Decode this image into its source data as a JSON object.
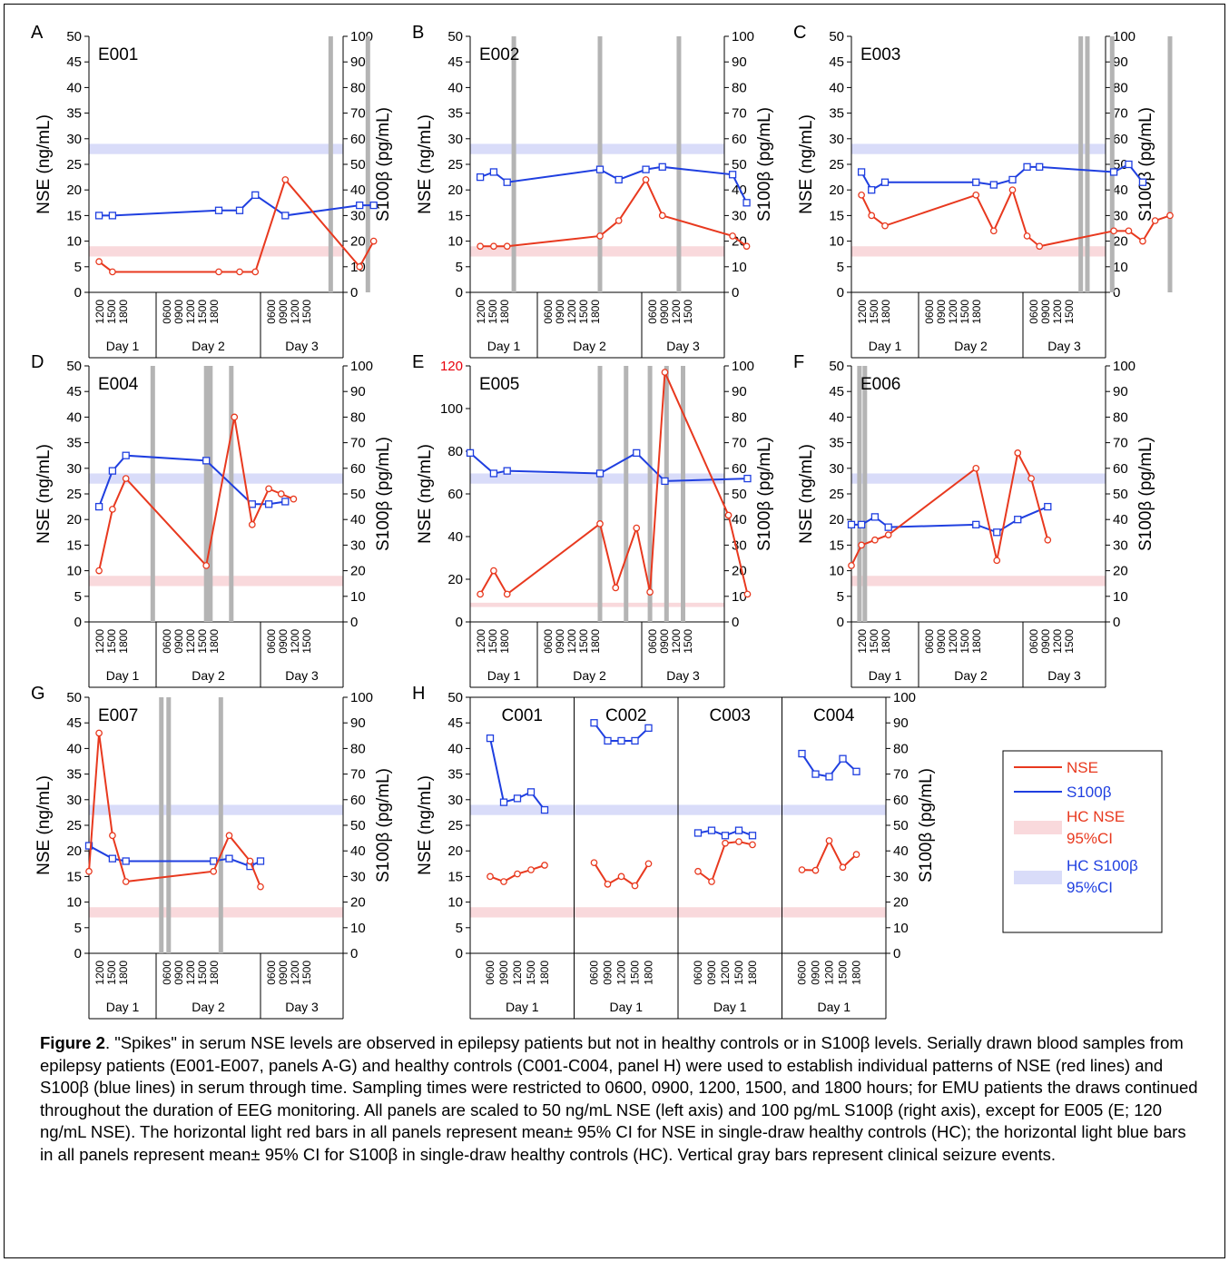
{
  "caption": {
    "label": "Figure 2",
    "text": ". \"Spikes\" in serum NSE levels are observed in epilepsy patients but not in healthy controls or in S100β levels. Serially drawn blood samples from epilepsy patients (E001-E007, panels A-G) and healthy controls (C001-C004, panel H) were used to establish individual patterns of NSE (red lines) and S100β (blue lines) in serum through time. Sampling times were restricted to 0600, 0900, 1200, 1500, and 1800 hours; for EMU patients the draws continued throughout the duration of EEG monitoring. All panels are scaled to 50 ng/mL NSE (left axis) and 100 pg/mL S100β (right axis), except for E005 (E; 120 ng/mL NSE). The horizontal light red bars in all panels represent mean± 95% CI for NSE in single-draw healthy controls (HC); the horizontal light blue bars in all panels represent mean± 95% CI for S100β in single-draw healthy controls (HC). Vertical gray bars represent clinical seizure events."
  },
  "colors": {
    "nse": "#e8391f",
    "s100": "#1f3fe0",
    "hc_nse_band": "#f9d9dc",
    "hc_s100_band": "#d9dcf9",
    "seizure": "#b4b4b4",
    "e005_axis_top": "#e8000b"
  },
  "legend": {
    "items": [
      {
        "label": "NSE",
        "kind": "line",
        "color": "#e8391f"
      },
      {
        "label": "S100β",
        "kind": "line",
        "color": "#1f3fe0"
      },
      {
        "label": "HC NSE",
        "label2": "95%CI",
        "kind": "band",
        "color": "#f9d9dc",
        "text_color": "#e8391f"
      },
      {
        "label": "HC S100β",
        "label2": "95%CI",
        "kind": "band",
        "color": "#d9dcf9",
        "text_color": "#1f3fe0"
      }
    ]
  },
  "chart_data": [
    {
      "panel": "A",
      "name": "E001",
      "type": "line",
      "ylabel_left": "NSE (ng/mL)",
      "ylabel_right": "S100β (pg/mL)",
      "y_left_lim": [
        0,
        50
      ],
      "y_left_ticks": [
        0,
        5,
        10,
        15,
        20,
        25,
        30,
        35,
        40,
        45,
        50
      ],
      "y_right_lim": [
        0,
        100
      ],
      "y_right_ticks": [
        0,
        10,
        20,
        30,
        40,
        50,
        60,
        70,
        80,
        90,
        100
      ],
      "hc_nse_band": [
        7,
        9
      ],
      "hc_s100_band": [
        54,
        58
      ],
      "x_days": [
        "Day 1",
        "Day 2",
        "Day 3"
      ],
      "x_ticks": [
        [
          "1200",
          "1500",
          "1800"
        ],
        [
          "0600",
          "0900",
          "1200",
          "1500",
          "1800"
        ],
        [
          "0600",
          "0900",
          "1200",
          "1500"
        ]
      ],
      "seizures": [
        2.85,
        3.3
      ],
      "nse": {
        "x": [
          0.15,
          0.35,
          1.6,
          1.8,
          1.95,
          2.3,
          3.2,
          3.37
        ],
        "y": [
          6,
          4,
          4,
          4,
          4,
          22,
          5,
          10
        ]
      },
      "s100": {
        "x": [
          0.15,
          0.35,
          1.6,
          1.8,
          1.95,
          2.3,
          3.2,
          3.37
        ],
        "y": [
          30,
          30,
          32,
          32,
          38,
          30,
          34,
          34
        ]
      }
    },
    {
      "panel": "B",
      "name": "E002",
      "type": "line",
      "ylabel_left": "NSE (ng/mL)",
      "ylabel_right": "S100β (pg/mL)",
      "y_left_lim": [
        0,
        50
      ],
      "y_left_ticks": [
        0,
        5,
        10,
        15,
        20,
        25,
        30,
        35,
        40,
        45,
        50
      ],
      "y_right_lim": [
        0,
        100
      ],
      "y_right_ticks": [
        0,
        10,
        20,
        30,
        40,
        50,
        60,
        70,
        80,
        90,
        100
      ],
      "hc_nse_band": [
        7,
        9
      ],
      "hc_s100_band": [
        54,
        58
      ],
      "x_days": [
        "Day 1",
        "Day 2",
        "Day 3"
      ],
      "x_ticks": [
        [
          "1200",
          "1500",
          "1800"
        ],
        [
          "0600",
          "0900",
          "1200",
          "1500",
          "1800"
        ],
        [
          "0600",
          "0900",
          "1200",
          "1500"
        ]
      ],
      "seizures": [
        0.65,
        1.6,
        2.45
      ],
      "nse": {
        "x": [
          0.15,
          0.35,
          0.55,
          1.6,
          1.78,
          2.05,
          2.25,
          3.1,
          3.27
        ],
        "y": [
          9,
          9,
          9,
          11,
          14,
          22,
          15,
          11,
          9
        ]
      },
      "s100": {
        "x": [
          0.15,
          0.35,
          0.55,
          1.6,
          1.78,
          2.05,
          2.25,
          3.1,
          3.27
        ],
        "y": [
          45,
          47,
          43,
          48,
          44,
          48,
          49,
          46,
          35
        ]
      }
    },
    {
      "panel": "C",
      "name": "E003",
      "type": "line",
      "ylabel_left": "NSE (ng/mL)",
      "ylabel_right": "S100β (pg/mL)",
      "y_left_lim": [
        0,
        50
      ],
      "y_left_ticks": [
        0,
        5,
        10,
        15,
        20,
        25,
        30,
        35,
        40,
        45,
        50
      ],
      "y_right_lim": [
        0,
        100
      ],
      "y_right_ticks": [
        0,
        10,
        20,
        30,
        40,
        50,
        60,
        70,
        80,
        90,
        100
      ],
      "hc_nse_band": [
        7,
        9
      ],
      "hc_s100_band": [
        54,
        58
      ],
      "x_days": [
        "Day 1",
        "Day 2",
        "Day 3"
      ],
      "x_ticks": [
        [
          "1200",
          "1500",
          "1800"
        ],
        [
          "0600",
          "0900",
          "1200",
          "1500",
          "1800"
        ],
        [
          "0600",
          "0900",
          "1200",
          "1500"
        ]
      ],
      "seizures": [
        2.7,
        2.78,
        3.08,
        3.78
      ],
      "nse": {
        "x": [
          0.15,
          0.3,
          0.5,
          1.55,
          1.72,
          1.9,
          2.05,
          2.2,
          3.1,
          3.28,
          3.45,
          3.6,
          3.78
        ],
        "y": [
          19,
          15,
          13,
          19,
          12,
          20,
          11,
          9,
          12,
          12,
          10,
          14,
          15
        ]
      },
      "s100": {
        "x": [
          0.15,
          0.3,
          0.5,
          1.55,
          1.72,
          1.9,
          2.05,
          2.2,
          3.1,
          3.28,
          3.45,
          3.6,
          3.78
        ],
        "y": [
          47,
          40,
          43,
          43,
          42,
          44,
          49,
          49,
          47,
          50,
          43,
          null,
          null
        ]
      }
    },
    {
      "panel": "D",
      "name": "E004",
      "type": "line",
      "ylabel_left": "NSE (ng/mL)",
      "ylabel_right": "S100β (pg/mL)",
      "y_left_lim": [
        0,
        50
      ],
      "y_left_ticks": [
        0,
        5,
        10,
        15,
        20,
        25,
        30,
        35,
        40,
        45,
        50
      ],
      "y_right_lim": [
        0,
        100
      ],
      "y_right_ticks": [
        0,
        10,
        20,
        30,
        40,
        50,
        60,
        70,
        80,
        90,
        100
      ],
      "hc_nse_band": [
        7,
        9
      ],
      "hc_s100_band": [
        54,
        58
      ],
      "x_days": [
        "Day 1",
        "Day 2",
        "Day 3"
      ],
      "x_ticks": [
        [
          "1200",
          "1500",
          "1800"
        ],
        [
          "0600",
          "0900",
          "1200",
          "1500",
          "1800"
        ],
        [
          "0600",
          "0900",
          "1200",
          "1500"
        ]
      ],
      "seizures": [
        0.95,
        1.48,
        1.52,
        1.72
      ],
      "nse": {
        "x": [
          0.15,
          0.35,
          0.55,
          1.48,
          1.75,
          1.92,
          2.1,
          2.25,
          2.4
        ],
        "y": [
          10,
          22,
          28,
          11,
          40,
          19,
          26,
          25,
          24
        ]
      },
      "s100": {
        "x": [
          0.15,
          0.35,
          0.55,
          1.48,
          1.92,
          2.1,
          2.3
        ],
        "y": [
          45,
          59,
          65,
          63,
          46,
          46,
          47
        ]
      }
    },
    {
      "panel": "E",
      "name": "E005",
      "type": "line",
      "ylabel_left": "NSE (ng/mL)",
      "ylabel_right": "S100β (pg/mL)",
      "y_left_lim": [
        0,
        120
      ],
      "y_left_ticks": [
        0,
        20,
        40,
        60,
        80,
        100,
        120
      ],
      "y_right_lim": [
        0,
        100
      ],
      "y_right_ticks": [
        0,
        10,
        20,
        30,
        40,
        50,
        60,
        70,
        80,
        90,
        100
      ],
      "hc_nse_band": [
        7,
        9
      ],
      "hc_s100_band": [
        54,
        58
      ],
      "x_days": [
        "Day 1",
        "Day 2",
        "Day 3"
      ],
      "x_ticks": [
        [
          "1200",
          "1500",
          "1800"
        ],
        [
          "0600",
          "0900",
          "1200",
          "1500",
          "1800"
        ],
        [
          "0600",
          "0900",
          "1200",
          "1500"
        ]
      ],
      "seizures": [
        1.6,
        1.85,
        2.1,
        2.3,
        2.5
      ],
      "nse": {
        "x": [
          0.15,
          0.35,
          0.55,
          1.6,
          1.75,
          1.95,
          2.1,
          2.28,
          3.05,
          3.28
        ],
        "y": [
          13,
          24,
          13,
          46,
          16,
          44,
          14,
          117,
          50,
          13
        ]
      },
      "s100": {
        "x": [
          0.0,
          0.35,
          0.55,
          1.6,
          1.95,
          2.28,
          3.28
        ],
        "y": [
          66,
          58,
          59,
          58,
          66,
          55,
          56
        ]
      }
    },
    {
      "panel": "F",
      "name": "E006",
      "type": "line",
      "ylabel_left": "NSE (ng/mL)",
      "ylabel_right": "S100β (pg/mL)",
      "y_left_lim": [
        0,
        50
      ],
      "y_left_ticks": [
        0,
        5,
        10,
        15,
        20,
        25,
        30,
        35,
        40,
        45,
        50
      ],
      "y_right_lim": [
        0,
        100
      ],
      "y_right_ticks": [
        0,
        10,
        20,
        30,
        40,
        50,
        60,
        70,
        80,
        90,
        100
      ],
      "hc_nse_band": [
        7,
        9
      ],
      "hc_s100_band": [
        54,
        58
      ],
      "x_days": [
        "Day 1",
        "Day 2",
        "Day 3"
      ],
      "x_ticks": [
        [
          "1200",
          "1500",
          "1800"
        ],
        [
          "0600",
          "0900",
          "1200",
          "1500",
          "1800"
        ],
        [
          "0600",
          "0900",
          "1200",
          "1500"
        ]
      ],
      "seizures": [
        0.12,
        0.2
      ],
      "nse": {
        "x": [
          0.0,
          0.15,
          0.35,
          0.55,
          1.55,
          1.75,
          1.95,
          2.1,
          2.3
        ],
        "y": [
          11,
          15,
          16,
          17,
          30,
          12,
          33,
          28,
          16
        ]
      },
      "s100": {
        "x": [
          0.0,
          0.15,
          0.35,
          0.55,
          1.55,
          1.75,
          1.95,
          2.3
        ],
        "y": [
          38,
          38,
          41,
          37,
          38,
          35,
          40,
          45
        ]
      }
    },
    {
      "panel": "G",
      "name": "E007",
      "type": "line",
      "ylabel_left": "NSE (ng/mL)",
      "ylabel_right": "S100β (pg/mL)",
      "y_left_lim": [
        0,
        50
      ],
      "y_left_ticks": [
        0,
        5,
        10,
        15,
        20,
        25,
        30,
        35,
        40,
        45,
        50
      ],
      "y_right_lim": [
        0,
        100
      ],
      "y_right_ticks": [
        0,
        10,
        20,
        30,
        40,
        50,
        60,
        70,
        80,
        90,
        100
      ],
      "hc_nse_band": [
        7,
        9
      ],
      "hc_s100_band": [
        54,
        58
      ],
      "x_days": [
        "Day 1",
        "Day 2",
        "Day 3"
      ],
      "x_ticks": [
        [
          "1200",
          "1500",
          "1800"
        ],
        [
          "0600",
          "0900",
          "1200",
          "1500",
          "1800"
        ],
        [
          "0600",
          "0900",
          "1200",
          "1500"
        ]
      ],
      "seizures": [
        1.05,
        1.12,
        1.62
      ],
      "nse": {
        "x": [
          0.0,
          0.15,
          0.35,
          0.55,
          1.55,
          1.7,
          1.9,
          2.0
        ],
        "y": [
          16,
          43,
          23,
          14,
          16,
          23,
          18,
          13
        ]
      },
      "s100": {
        "x": [
          0.0,
          0.35,
          0.55,
          1.55,
          1.7,
          1.9,
          2.0
        ],
        "y": [
          42,
          37,
          36,
          36,
          37,
          34,
          36
        ]
      }
    },
    {
      "panel": "H",
      "name": "",
      "type": "line",
      "ylabel_left": "NSE (ng/mL)",
      "ylabel_right": "S100β (pg/mL)",
      "y_left_lim": [
        0,
        50
      ],
      "y_left_ticks": [
        0,
        5,
        10,
        15,
        20,
        25,
        30,
        35,
        40,
        45,
        50
      ],
      "y_right_lim": [
        0,
        100
      ],
      "y_right_ticks": [
        0,
        10,
        20,
        30,
        40,
        50,
        60,
        70,
        80,
        90,
        100
      ],
      "hc_nse_band": [
        7,
        9
      ],
      "hc_s100_band": [
        54,
        58
      ],
      "controls": [
        {
          "name": "C001",
          "day": "Day 1",
          "ticks": [
            "0600",
            "0900",
            "1200",
            "1500",
            "1800"
          ],
          "nse": [
            15,
            14,
            15.5,
            16.3,
            17.2
          ],
          "s100": [
            84,
            59,
            60.5,
            63,
            56
          ]
        },
        {
          "name": "C002",
          "day": "Day 1",
          "ticks": [
            "0600",
            "0900",
            "1200",
            "1500",
            "1800"
          ],
          "nse": [
            17.7,
            13.5,
            15,
            13.2,
            17.5
          ],
          "s100": [
            90,
            83,
            83,
            83,
            88
          ]
        },
        {
          "name": "C003",
          "day": "Day 1",
          "ticks": [
            "0600",
            "0900",
            "1200",
            "1500",
            "1800"
          ],
          "nse": [
            16,
            14,
            21.5,
            21.8,
            21.2
          ],
          "s100": [
            47,
            48,
            46,
            48,
            46
          ]
        },
        {
          "name": "C004",
          "day": "Day 1",
          "ticks": [
            "0600",
            "0900",
            "1200",
            "1500",
            "1800"
          ],
          "nse": [
            16.3,
            16.2,
            22,
            16.8,
            19.3
          ],
          "s100": [
            78,
            70,
            69,
            76,
            71
          ]
        }
      ]
    }
  ]
}
